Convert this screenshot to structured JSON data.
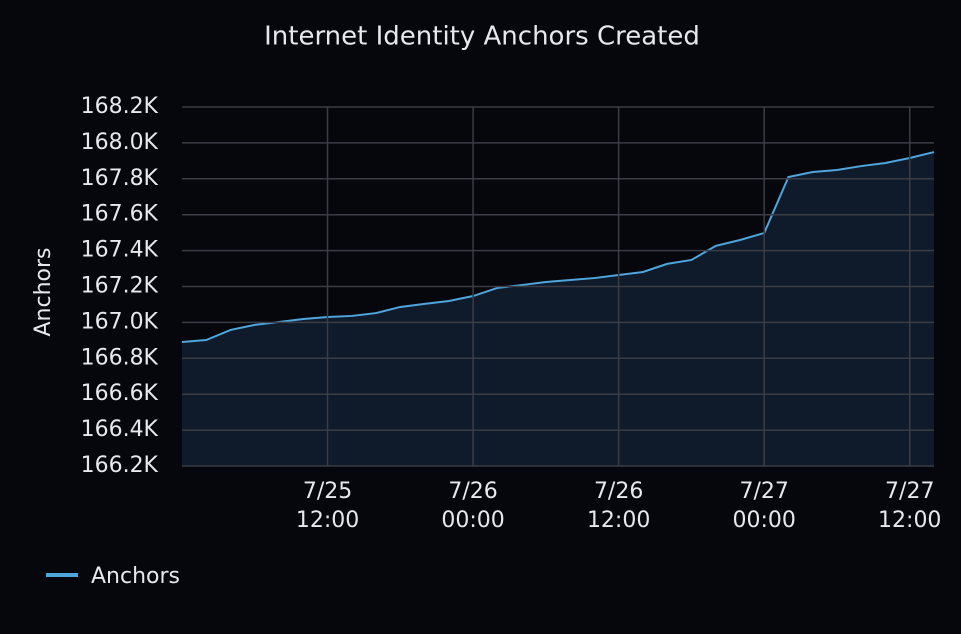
{
  "chart_data": {
    "type": "area",
    "title": "Internet Identity Anchors Created",
    "y_label": "Anchors",
    "color": "#4fa6dc",
    "fill": "#0f1a2a",
    "grid": true,
    "x": [
      "7/25 00:00",
      "7/25 02:00",
      "7/25 04:00",
      "7/25 06:00",
      "7/25 08:00",
      "7/25 10:00",
      "7/25 12:00",
      "7/25 14:00",
      "7/25 16:00",
      "7/25 18:00",
      "7/25 20:00",
      "7/25 22:00",
      "7/26 00:00",
      "7/26 02:00",
      "7/26 04:00",
      "7/26 06:00",
      "7/26 08:00",
      "7/26 10:00",
      "7/26 12:00",
      "7/26 14:00",
      "7/26 16:00",
      "7/26 18:00",
      "7/26 20:00",
      "7/26 22:00",
      "7/27 00:00",
      "7/27 02:00",
      "7/27 04:00",
      "7/27 06:00",
      "7/27 08:00",
      "7/27 10:00",
      "7/27 12:00",
      "7/27 14:00"
    ],
    "series": [
      {
        "name": "Anchors",
        "color": "#4fa6dc",
        "values": [
          166891,
          166902,
          166958,
          166986,
          167002,
          167019,
          167030,
          167036,
          167052,
          167086,
          167103,
          167119,
          167147,
          167192,
          167208,
          167225,
          167236,
          167247,
          167264,
          167281,
          167326,
          167348,
          167426,
          167459,
          167498,
          167810,
          167838,
          167849,
          167871,
          167888,
          167916,
          167949
        ]
      }
    ],
    "xlim": [
      "7/25 00:00",
      "7/27 14:00"
    ],
    "xticks": [
      "7/25 12:00",
      "7/26 00:00",
      "7/26 12:00",
      "7/27 00:00",
      "7/27 12:00"
    ],
    "ylim": [
      166200,
      168200
    ],
    "yticks": [
      {
        "value": 166200,
        "label": "166.2K"
      },
      {
        "value": 166400,
        "label": "166.4K"
      },
      {
        "value": 166600,
        "label": "166.6K"
      },
      {
        "value": 166800,
        "label": "166.8K"
      },
      {
        "value": 167000,
        "label": "167.0K"
      },
      {
        "value": 167200,
        "label": "167.2K"
      },
      {
        "value": 167400,
        "label": "167.4K"
      },
      {
        "value": 167600,
        "label": "167.6K"
      },
      {
        "value": 167800,
        "label": "167.8K"
      },
      {
        "value": 168000,
        "label": "168.0K"
      },
      {
        "value": 168200,
        "label": "168.2K"
      }
    ]
  }
}
